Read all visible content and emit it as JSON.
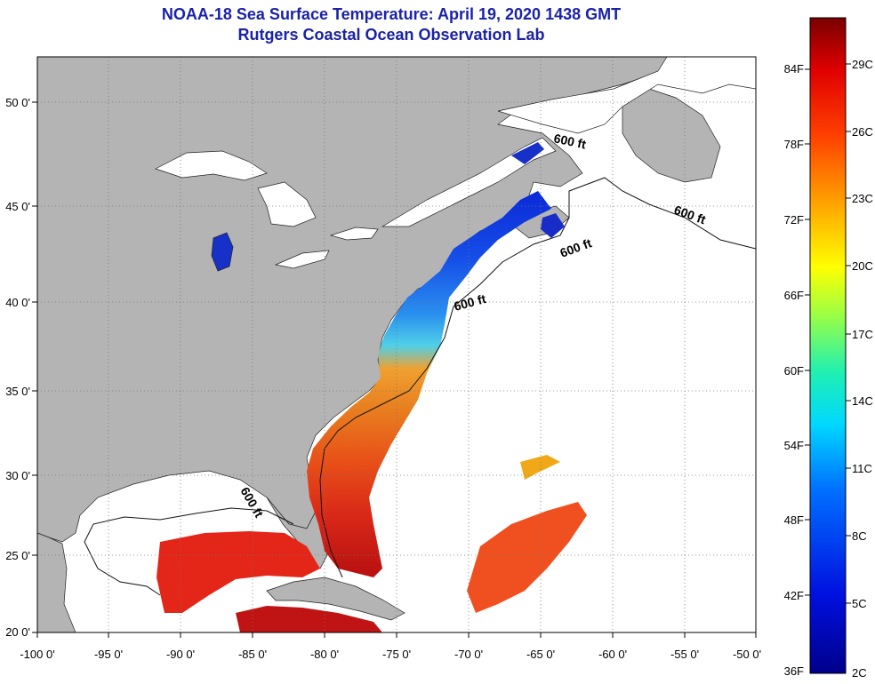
{
  "title": "NOAA-18 Sea Surface Temperature:  April 19, 2020 1438 GMT",
  "subtitle": "Rutgers Coastal Ocean Observation Lab",
  "map": {
    "lat_labels": [
      "50 0'",
      "45 0'",
      "40 0'",
      "35 0'",
      "30 0'",
      "25 0'",
      "20 0'"
    ],
    "lon_labels": [
      "-100 0'",
      "-95 0'",
      "-90 0'",
      "-85 0'",
      "-80 0'",
      "-75 0'",
      "-70 0'",
      "-65 0'",
      "-60 0'",
      "-55 0'",
      "-50 0'"
    ],
    "contour_labels": [
      "600 ft",
      "600 ft",
      "600 ft",
      "600 ft",
      "600 ft"
    ],
    "colors": {
      "land": "#b4b4b4",
      "no_data": "#ffffff",
      "grid": "#777777"
    }
  },
  "colorbar": {
    "fahrenheit_labels": [
      "84F",
      "78F",
      "72F",
      "66F",
      "60F",
      "54F",
      "48F",
      "42F",
      "36F"
    ],
    "celsius_labels": [
      "29C",
      "26C",
      "23C",
      "20C",
      "17C",
      "14C",
      "11C",
      "8C",
      "5C",
      "2C"
    ]
  }
}
